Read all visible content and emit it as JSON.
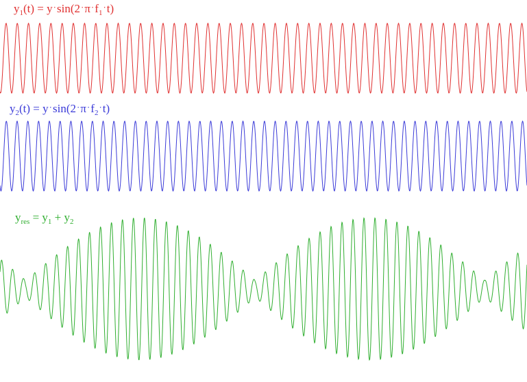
{
  "equations": {
    "y1": {
      "lhs": "y",
      "lhs_sub": "1",
      "lhs_arg": "(t)",
      "eq": " = ",
      "amp": "y",
      "fn": "sin(2",
      "pi": "π",
      "freq": "f",
      "freq_sub": "1",
      "tail": "t)",
      "color": "#e03030"
    },
    "y2": {
      "lhs": "y",
      "lhs_sub": "2",
      "lhs_arg": "(t)",
      "eq": " = ",
      "amp": "y",
      "fn": "sin(2",
      "pi": "π",
      "freq": "f",
      "freq_sub": "2",
      "tail": "t)",
      "color": "#3a3ad8"
    },
    "yres": {
      "lhs": "y",
      "lhs_sub": "res",
      "eq": " = ",
      "t1": "y",
      "t1_sub": "1",
      "plus": " + ",
      "t2": "y",
      "t2_sub": "2",
      "color": "#2fae2f"
    }
  },
  "waves": {
    "y1": {
      "color": "#e03030",
      "cycles": 47
    },
    "y2": {
      "color": "#3a3ad8",
      "cycles": 49
    },
    "yres": {
      "color": "#2fae2f",
      "beats": 2
    }
  }
}
